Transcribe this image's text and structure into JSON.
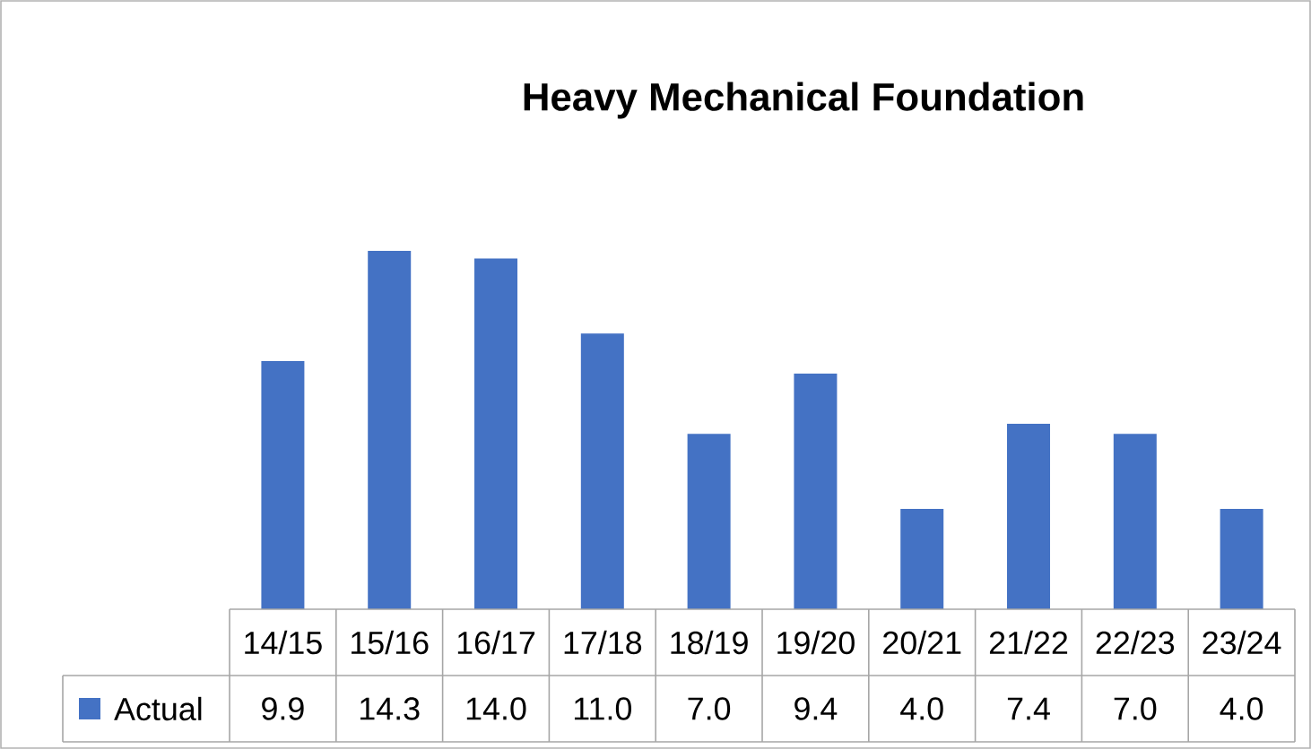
{
  "chart_data": {
    "type": "bar",
    "title": "Heavy Mechanical Foundation",
    "categories": [
      "14/15",
      "15/16",
      "16/17",
      "17/18",
      "18/19",
      "19/20",
      "20/21",
      "21/22",
      "22/23",
      "23/24"
    ],
    "series": [
      {
        "name": "Actual",
        "color": "#4472c4",
        "values": [
          9.9,
          14.3,
          14.0,
          11.0,
          7.0,
          9.4,
          4.0,
          7.4,
          7.0,
          4.0
        ],
        "value_labels": [
          "9.9",
          "14.3",
          "14.0",
          "11.0",
          "7.0",
          "9.4",
          "4.0",
          "7.4",
          "7.0",
          "4.0"
        ]
      }
    ],
    "legend": "bottom"
  }
}
